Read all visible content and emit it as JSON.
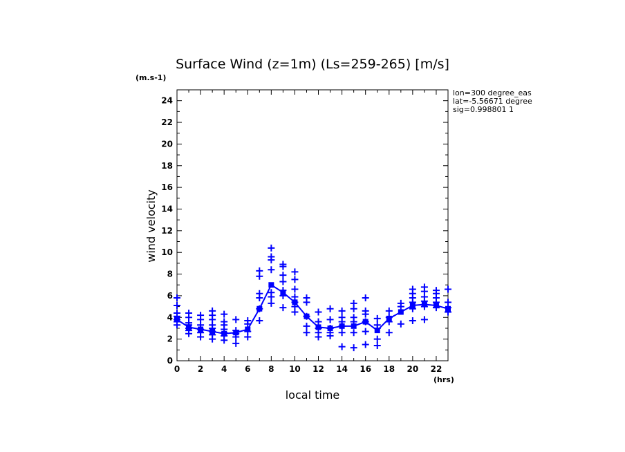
{
  "chart_data": {
    "type": "line",
    "title": "Surface Wind (z=1m) (Ls=259-265) [m/s]",
    "y_unit": "(m.s-1)",
    "x_unit": "(hrs)",
    "xlabel": "local time",
    "ylabel": "wind velocity",
    "xlim": [
      0,
      23
    ],
    "ylim": [
      0,
      25
    ],
    "x_ticks": [
      0,
      2,
      4,
      6,
      8,
      10,
      12,
      14,
      16,
      18,
      20,
      22
    ],
    "y_ticks": [
      0,
      2,
      4,
      6,
      8,
      10,
      12,
      14,
      16,
      18,
      20,
      22,
      24
    ],
    "grid": false,
    "info_lines": [
      "lon=300 degree_eas",
      "lat=-5.56671 degree",
      "sig=0.998801 1"
    ],
    "color": "#0000ff",
    "series": [
      {
        "type": "line",
        "x": [
          0,
          1,
          2,
          3,
          4,
          5,
          6,
          7,
          8,
          9,
          10,
          11,
          12,
          13,
          14,
          15,
          16,
          17,
          18,
          19,
          20,
          21,
          22,
          23
        ],
        "values": [
          3.8,
          3.1,
          2.9,
          2.7,
          2.5,
          2.6,
          2.9,
          4.8,
          7.0,
          6.3,
          5.4,
          4.1,
          3.1,
          3.0,
          3.2,
          3.2,
          3.6,
          2.8,
          3.9,
          4.5,
          5.1,
          5.2,
          5.1,
          4.8
        ]
      },
      {
        "type": "scatter",
        "marker": "plus",
        "points": [
          [
            0,
            3.3
          ],
          [
            0,
            3.6
          ],
          [
            0,
            3.8
          ],
          [
            0,
            4.1
          ],
          [
            0,
            4.4
          ],
          [
            0,
            5.1
          ],
          [
            0,
            5.8
          ],
          [
            1,
            2.5
          ],
          [
            1,
            2.8
          ],
          [
            1,
            3.0
          ],
          [
            1,
            3.3
          ],
          [
            1,
            3.5
          ],
          [
            1,
            4.0
          ],
          [
            1,
            4.4
          ],
          [
            2,
            2.2
          ],
          [
            2,
            2.6
          ],
          [
            2,
            2.9
          ],
          [
            2,
            3.3
          ],
          [
            2,
            3.8
          ],
          [
            2,
            4.2
          ],
          [
            3,
            2.0
          ],
          [
            3,
            2.4
          ],
          [
            3,
            2.7
          ],
          [
            3,
            3.0
          ],
          [
            3,
            3.3
          ],
          [
            3,
            3.8
          ],
          [
            3,
            4.2
          ],
          [
            3,
            4.6
          ],
          [
            4,
            1.9
          ],
          [
            4,
            2.3
          ],
          [
            4,
            2.6
          ],
          [
            4,
            2.9
          ],
          [
            4,
            3.3
          ],
          [
            4,
            3.6
          ],
          [
            4,
            4.3
          ],
          [
            5,
            1.6
          ],
          [
            5,
            2.2
          ],
          [
            5,
            2.5
          ],
          [
            5,
            2.8
          ],
          [
            5,
            3.8
          ],
          [
            6,
            2.2
          ],
          [
            6,
            2.7
          ],
          [
            6,
            3.4
          ],
          [
            6,
            3.7
          ],
          [
            7,
            3.7
          ],
          [
            7,
            4.8
          ],
          [
            7,
            5.8
          ],
          [
            7,
            6.2
          ],
          [
            7,
            7.8
          ],
          [
            7,
            8.3
          ],
          [
            8,
            5.3
          ],
          [
            8,
            5.9
          ],
          [
            8,
            6.3
          ],
          [
            8,
            8.4
          ],
          [
            8,
            9.3
          ],
          [
            8,
            9.6
          ],
          [
            8,
            10.4
          ],
          [
            9,
            4.9
          ],
          [
            9,
            6.0
          ],
          [
            9,
            6.5
          ],
          [
            9,
            7.3
          ],
          [
            9,
            7.9
          ],
          [
            9,
            8.7
          ],
          [
            9,
            8.9
          ],
          [
            10,
            4.5
          ],
          [
            10,
            5.0
          ],
          [
            10,
            5.4
          ],
          [
            10,
            5.9
          ],
          [
            10,
            6.6
          ],
          [
            10,
            7.5
          ],
          [
            10,
            8.2
          ],
          [
            11,
            2.6
          ],
          [
            11,
            3.2
          ],
          [
            11,
            4.1
          ],
          [
            11,
            5.4
          ],
          [
            11,
            5.8
          ],
          [
            12,
            2.2
          ],
          [
            12,
            2.6
          ],
          [
            12,
            3.0
          ],
          [
            12,
            3.6
          ],
          [
            12,
            4.5
          ],
          [
            13,
            2.3
          ],
          [
            13,
            2.6
          ],
          [
            13,
            3.0
          ],
          [
            13,
            3.8
          ],
          [
            13,
            4.8
          ],
          [
            14,
            1.3
          ],
          [
            14,
            2.6
          ],
          [
            14,
            3.2
          ],
          [
            14,
            3.6
          ],
          [
            14,
            4.0
          ],
          [
            14,
            4.6
          ],
          [
            15,
            1.2
          ],
          [
            15,
            2.6
          ],
          [
            15,
            3.6
          ],
          [
            15,
            4.0
          ],
          [
            15,
            4.8
          ],
          [
            15,
            5.3
          ],
          [
            16,
            1.5
          ],
          [
            16,
            2.7
          ],
          [
            16,
            3.6
          ],
          [
            16,
            4.3
          ],
          [
            16,
            4.6
          ],
          [
            16,
            5.8
          ],
          [
            17,
            1.4
          ],
          [
            17,
            2.0
          ],
          [
            17,
            3.0
          ],
          [
            17,
            3.3
          ],
          [
            17,
            3.9
          ],
          [
            18,
            2.6
          ],
          [
            18,
            3.6
          ],
          [
            18,
            4.0
          ],
          [
            18,
            4.6
          ],
          [
            19,
            3.4
          ],
          [
            19,
            5.0
          ],
          [
            19,
            5.3
          ],
          [
            20,
            3.7
          ],
          [
            20,
            4.8
          ],
          [
            20,
            5.4
          ],
          [
            20,
            5.8
          ],
          [
            20,
            6.2
          ],
          [
            20,
            6.6
          ],
          [
            21,
            3.8
          ],
          [
            21,
            5.0
          ],
          [
            21,
            5.5
          ],
          [
            21,
            5.9
          ],
          [
            21,
            6.4
          ],
          [
            21,
            6.8
          ],
          [
            22,
            4.9
          ],
          [
            22,
            5.4
          ],
          [
            22,
            5.8
          ],
          [
            22,
            6.2
          ],
          [
            22,
            6.5
          ],
          [
            23,
            4.5
          ],
          [
            23,
            4.9
          ],
          [
            23,
            5.4
          ],
          [
            23,
            6.6
          ]
        ]
      }
    ]
  }
}
